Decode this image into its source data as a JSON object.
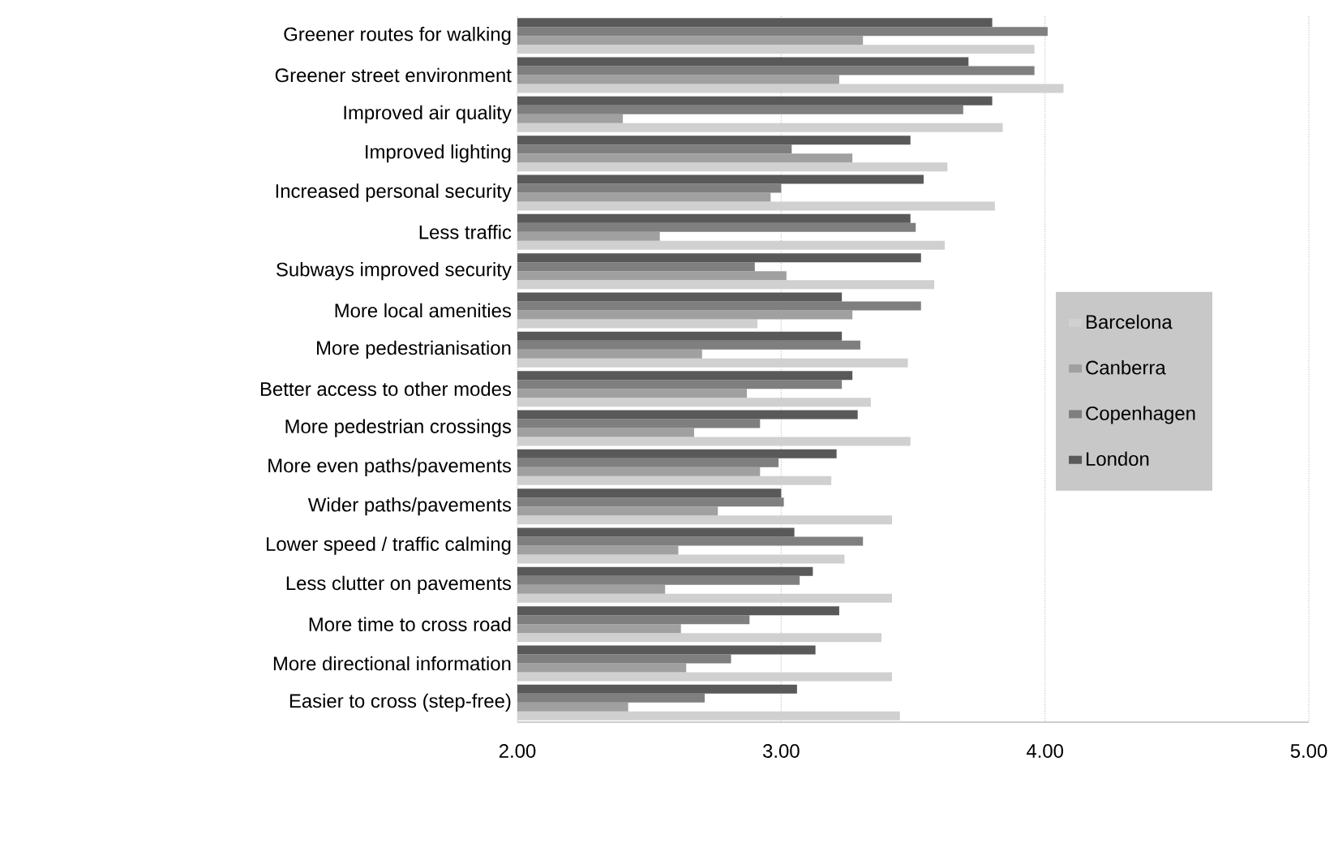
{
  "chart_data": {
    "type": "bar",
    "orientation": "horizontal",
    "categories": [
      "Greener routes for walking",
      "Greener street environment",
      "Improved air quality",
      "Improved lighting",
      "Increased personal security",
      "Less traffic",
      "Subways improved security",
      "More local amenities",
      "More pedestrianisation",
      "Better access to other modes",
      "More pedestrian crossings",
      "More even paths/pavements",
      "Wider paths/pavements",
      "Lower speed / traffic calming",
      "Less clutter on pavements",
      "More time to cross road",
      "More directional information",
      "Easier to cross (step-free)"
    ],
    "series": [
      {
        "name": "Barcelona",
        "color": "#d0d0d0",
        "values": [
          3.96,
          4.07,
          3.84,
          3.63,
          3.81,
          3.62,
          3.58,
          2.91,
          3.48,
          3.34,
          3.49,
          3.19,
          3.42,
          3.24,
          3.42,
          3.38,
          3.42,
          3.45
        ]
      },
      {
        "name": "Canberra",
        "color": "#a0a0a0",
        "values": [
          3.31,
          3.22,
          2.4,
          3.27,
          2.96,
          2.54,
          3.02,
          3.27,
          2.7,
          2.87,
          2.67,
          2.92,
          2.76,
          2.61,
          2.56,
          2.62,
          2.64,
          2.42
        ]
      },
      {
        "name": "Copenhagen",
        "color": "#7f7f7f",
        "values": [
          4.01,
          3.96,
          3.69,
          3.04,
          3.0,
          3.51,
          2.9,
          3.53,
          3.3,
          3.23,
          2.92,
          2.99,
          3.01,
          3.31,
          3.07,
          2.88,
          2.81,
          2.71
        ]
      },
      {
        "name": "London",
        "color": "#595959",
        "values": [
          3.8,
          3.71,
          3.8,
          3.49,
          3.54,
          3.49,
          3.53,
          3.23,
          3.23,
          3.27,
          3.29,
          3.21,
          3.0,
          3.05,
          3.12,
          3.22,
          3.13,
          3.06
        ]
      }
    ],
    "xlim": [
      2,
      5
    ],
    "xticks": [
      {
        "value": 2,
        "label": "2.00"
      },
      {
        "value": 3,
        "label": "3.00"
      },
      {
        "value": 4,
        "label": "4.00"
      },
      {
        "value": 5,
        "label": "5.00"
      }
    ],
    "grid": "x",
    "legend": "right"
  }
}
